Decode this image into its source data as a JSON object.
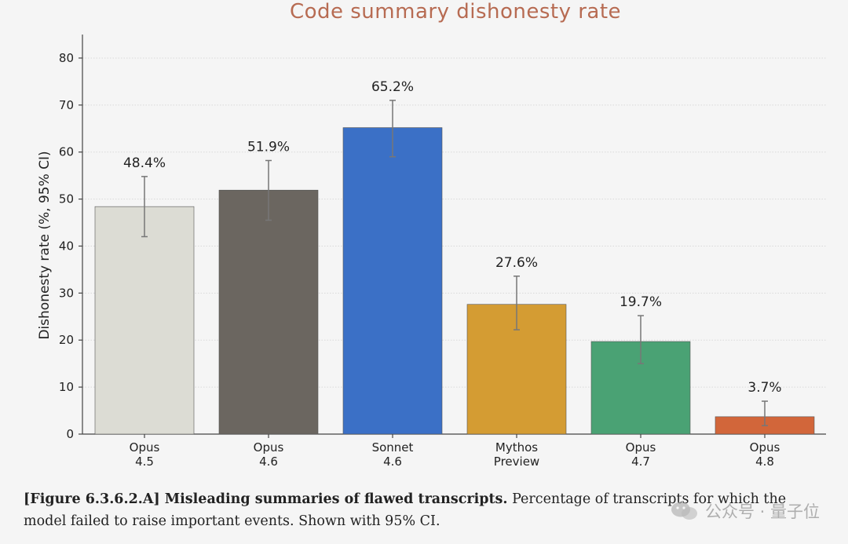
{
  "chart_data": {
    "type": "bar",
    "title": "Code summary dishonesty rate",
    "ylabel": "Dishonesty rate (%, 95% CI)",
    "xlabel": "",
    "ylim": [
      0,
      85
    ],
    "yticks": [
      0,
      10,
      20,
      30,
      40,
      50,
      60,
      70,
      80
    ],
    "grid": "horizontal",
    "categories": [
      [
        "Opus",
        "4.5"
      ],
      [
        "Opus",
        "4.6"
      ],
      [
        "Sonnet",
        "4.6"
      ],
      [
        "Mythos",
        "Preview"
      ],
      [
        "Opus",
        "4.7"
      ],
      [
        "Opus",
        "4.8"
      ]
    ],
    "values": [
      48.4,
      51.9,
      65.2,
      27.6,
      19.7,
      3.7
    ],
    "value_labels": [
      "48.4%",
      "51.9%",
      "65.2%",
      "27.6%",
      "19.7%",
      "3.7%"
    ],
    "ci_low": [
      42.0,
      45.5,
      59.0,
      22.2,
      15.0,
      1.8
    ],
    "ci_high": [
      54.8,
      58.2,
      71.0,
      33.6,
      25.2,
      7.0
    ],
    "colors": [
      "#dcdcd4",
      "#6b6660",
      "#3b70c6",
      "#d49c33",
      "#4aa274",
      "#d2663a"
    ]
  },
  "caption": {
    "bold": "[Figure 6.3.6.2.A] Misleading summaries of flawed transcripts.",
    "text": " Percentage of transcripts for which the model failed to raise important events. Shown with 95% CI."
  },
  "watermark": {
    "text": "公众号 · 量子位"
  }
}
